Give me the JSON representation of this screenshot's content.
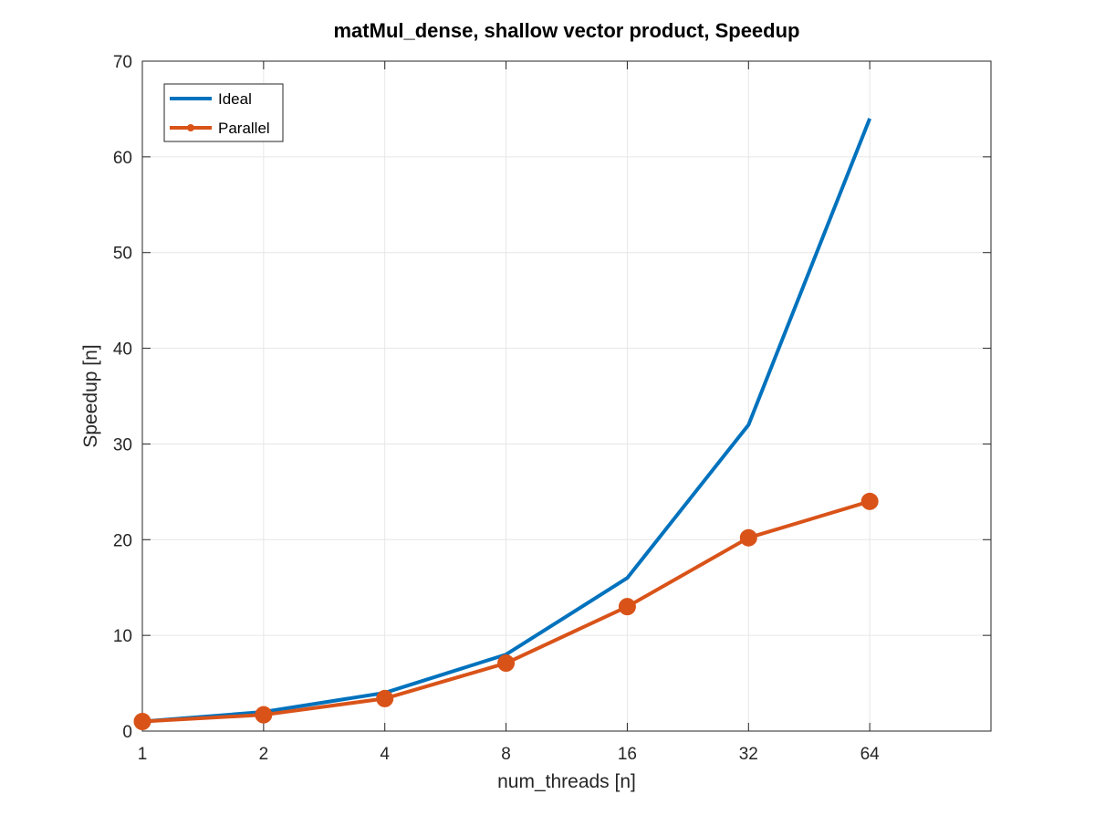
{
  "chart_data": {
    "type": "line",
    "title": "matMul_dense, shallow vector product, Speedup",
    "xlabel": "num_threads [n]",
    "ylabel": "Speedup [n]",
    "x": [
      1,
      2,
      4,
      8,
      16,
      32,
      64
    ],
    "x_tick_labels": [
      "1",
      "2",
      "4",
      "8",
      "16",
      "32",
      "64"
    ],
    "x_scale": "log2",
    "xlim": [
      1,
      128
    ],
    "ylim": [
      0,
      70
    ],
    "y_ticks": [
      0,
      10,
      20,
      30,
      40,
      50,
      60,
      70
    ],
    "grid": true,
    "legend_position": "top-left",
    "series": [
      {
        "name": "Ideal",
        "values": [
          1,
          2,
          4,
          8,
          16,
          32,
          64
        ],
        "color": "#0072BD",
        "markers": false
      },
      {
        "name": "Parallel",
        "values": [
          1.0,
          1.7,
          3.4,
          7.1,
          13.0,
          20.2,
          24.0
        ],
        "color": "#D95319",
        "markers": true
      }
    ]
  }
}
